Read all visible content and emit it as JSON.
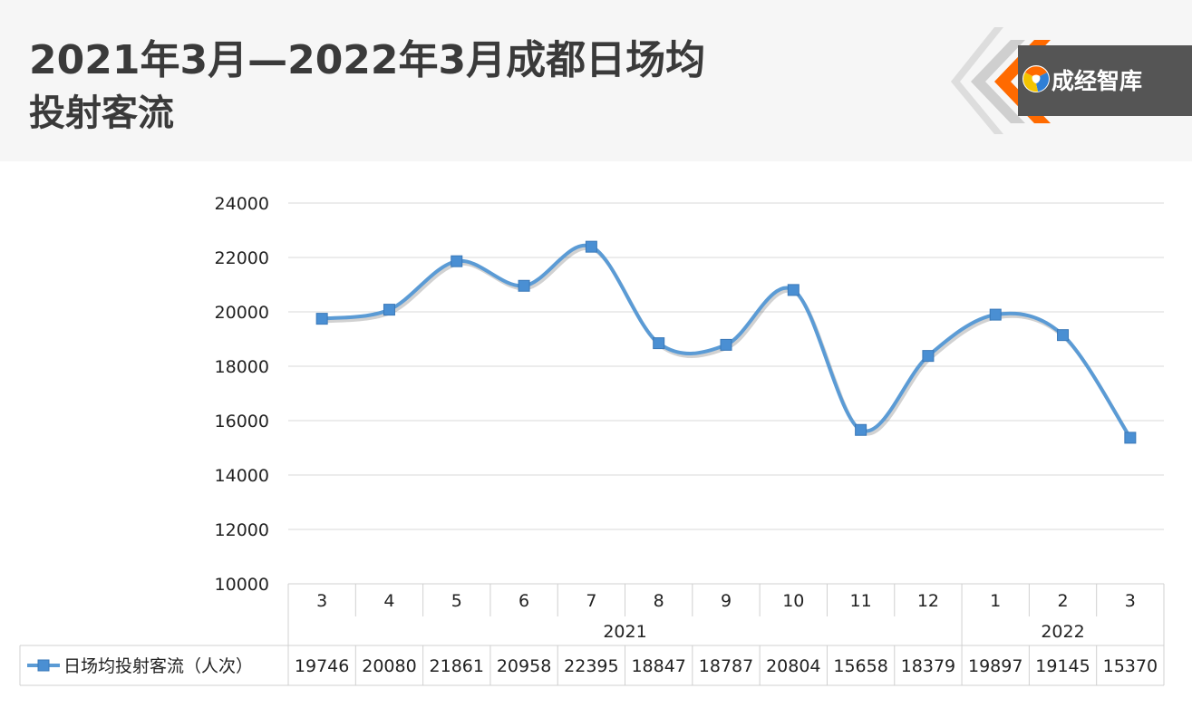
{
  "title": {
    "line1": "2021年3月—2022年3月成都日场均",
    "line2": "投射客流"
  },
  "logo": {
    "text": "成经智库",
    "icon": "swirl-logo-icon",
    "accent": "#ff6a00",
    "bg": "#555555"
  },
  "chart_data": {
    "type": "line",
    "title": "2021年3月—2022年3月成都日场均投射客流",
    "categories": [
      "3",
      "4",
      "5",
      "6",
      "7",
      "8",
      "9",
      "10",
      "11",
      "12",
      "1",
      "2",
      "3"
    ],
    "year_groups": [
      {
        "label": "2021",
        "count": 10
      },
      {
        "label": "2022",
        "count": 3
      }
    ],
    "series": [
      {
        "name": "日场均投射客流（人次）",
        "color": "#5b9bd5",
        "values": [
          19746,
          20080,
          21861,
          20958,
          22395,
          18847,
          18787,
          20804,
          15658,
          18379,
          19897,
          19145,
          15370
        ]
      }
    ],
    "ylim": [
      10000,
      24000
    ],
    "yticks": [
      "24000",
      "22000",
      "20000",
      "18000",
      "16000",
      "14000",
      "12000",
      "10000"
    ],
    "grid": true,
    "legend": "bottom-left (data table)"
  }
}
